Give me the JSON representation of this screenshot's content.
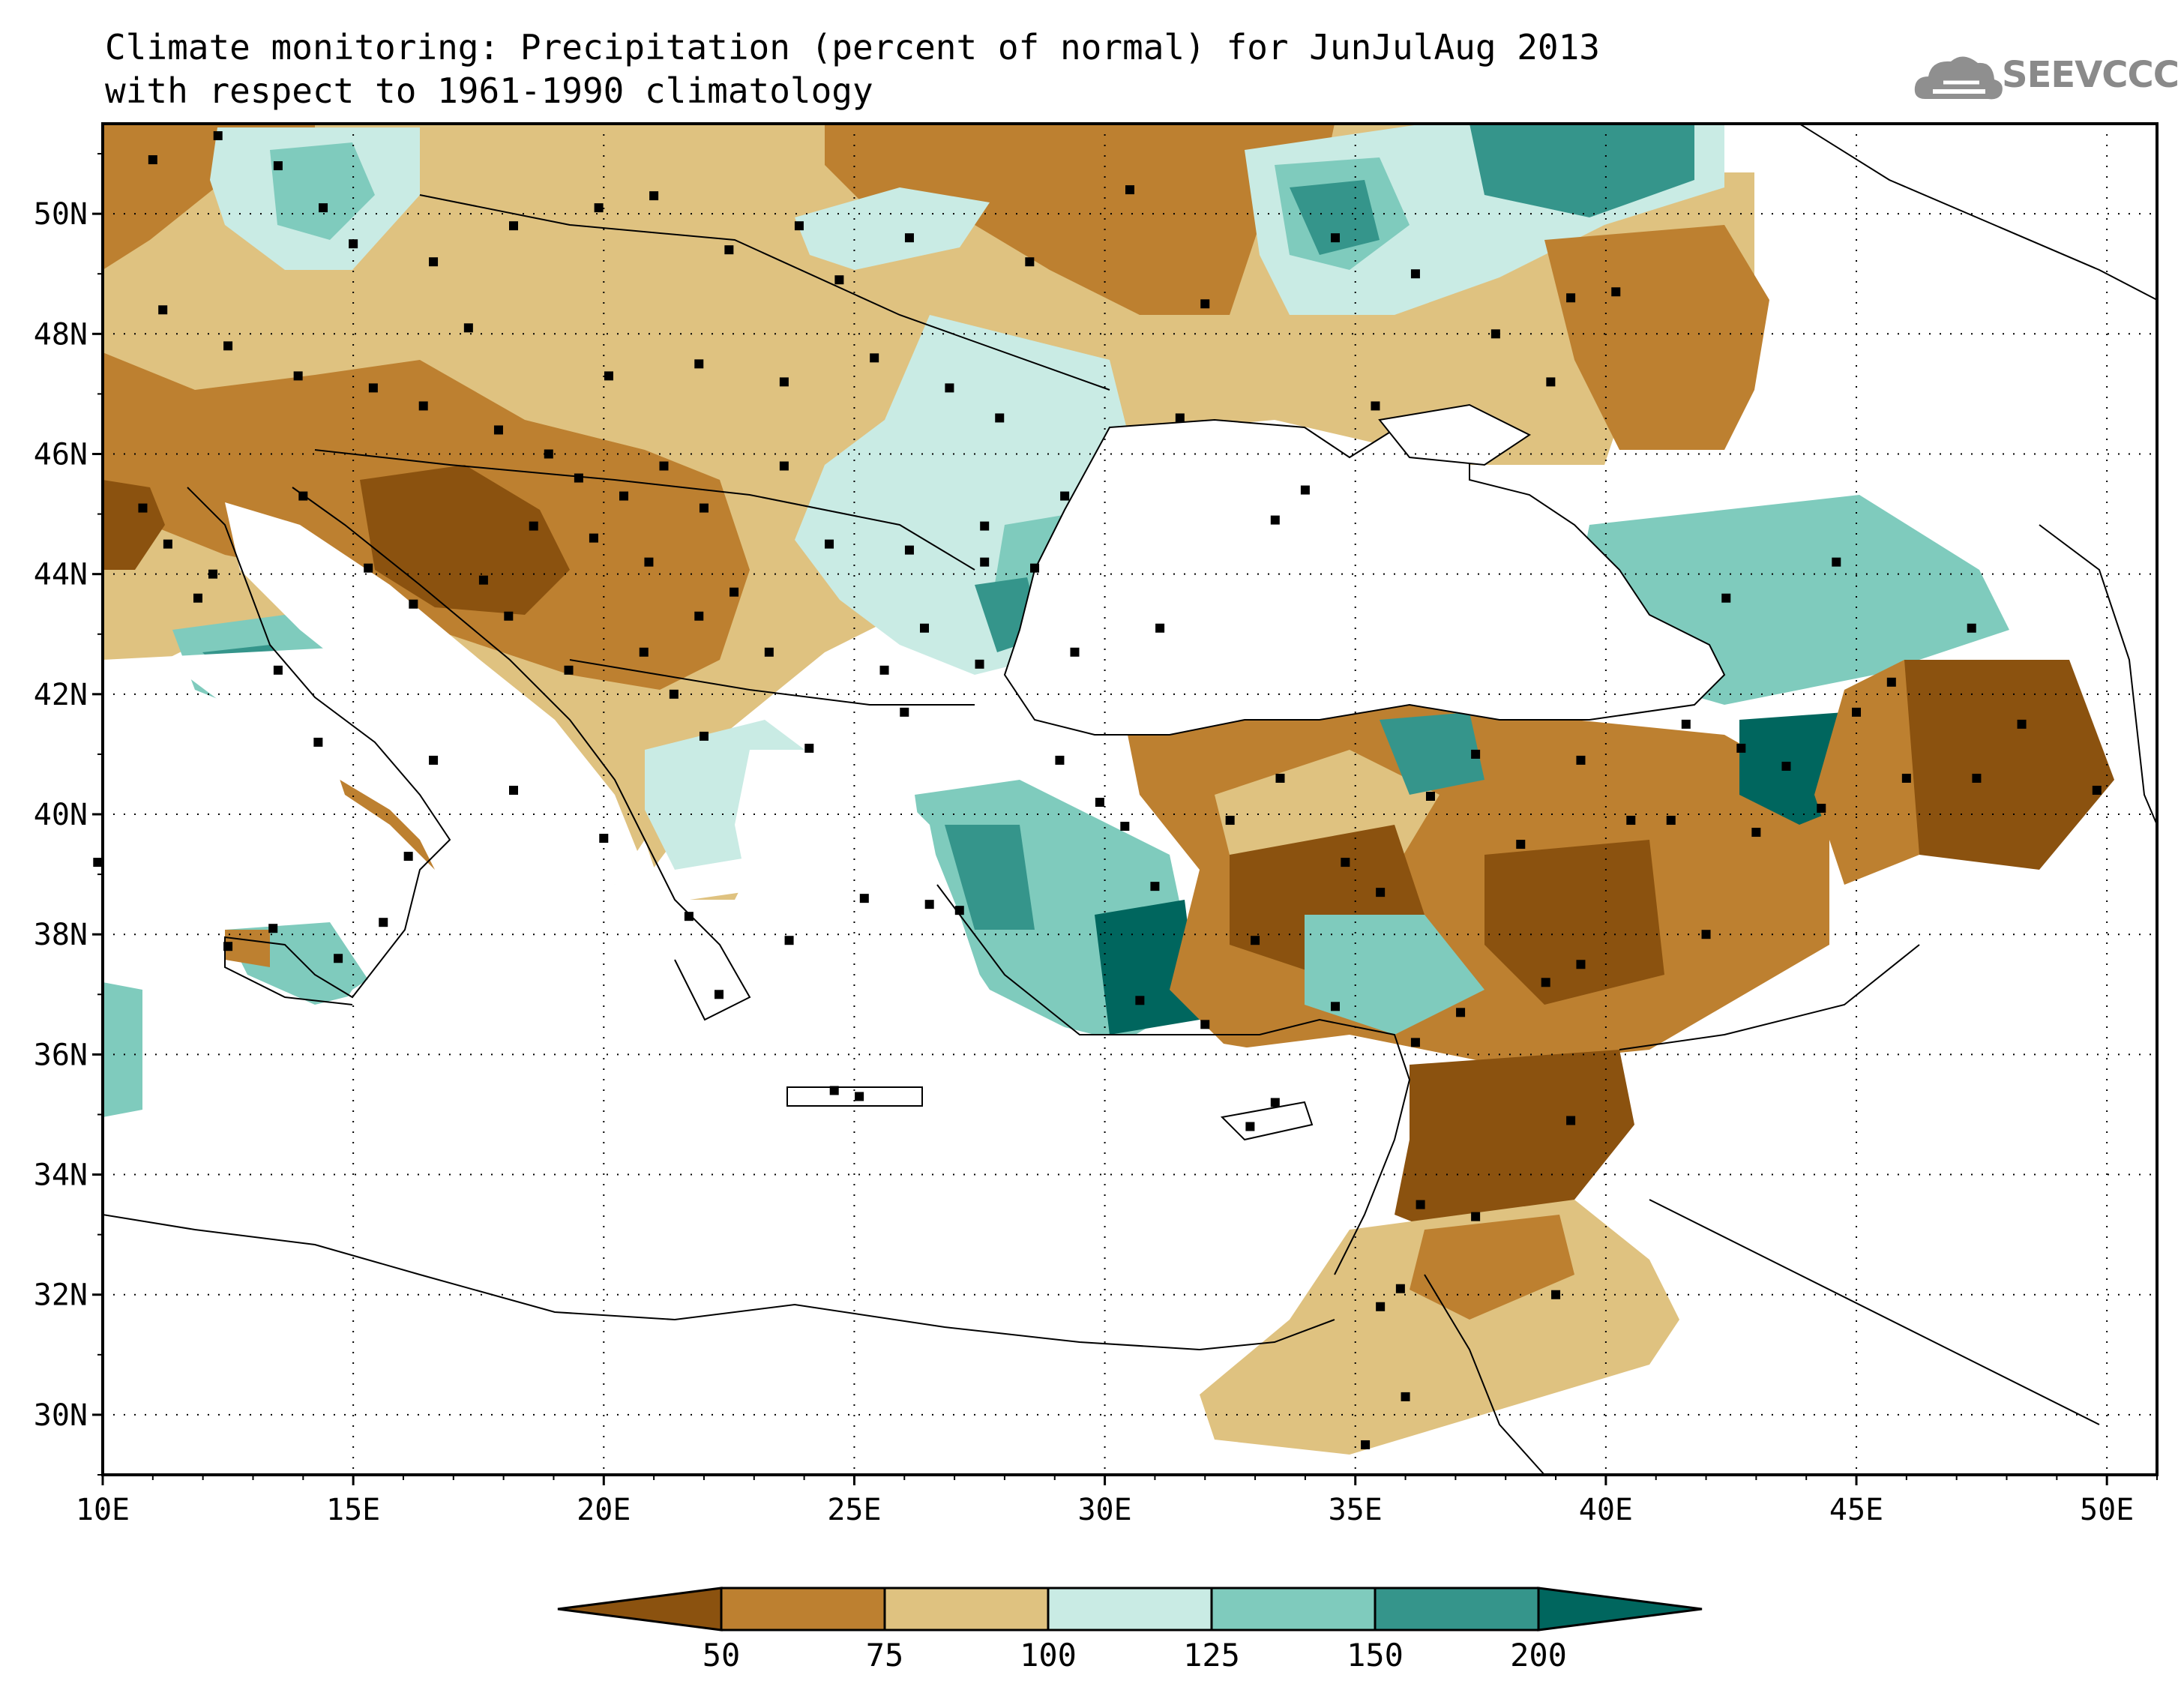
{
  "title": {
    "line1": "Climate monitoring: Precipitation (percent of normal) for JunJulAug 2013",
    "line2": "with respect to 1961-1990 climatology"
  },
  "logo": {
    "text": "SEEVCCC",
    "icon": "cloud-icon"
  },
  "map": {
    "lon_range": [
      10,
      51
    ],
    "lat_range": [
      29,
      51.5
    ],
    "x_ticks": [
      "10E",
      "15E",
      "20E",
      "25E",
      "30E",
      "35E",
      "40E",
      "45E",
      "50E"
    ],
    "y_ticks": [
      "30N",
      "32N",
      "34N",
      "36N",
      "38N",
      "40N",
      "42N",
      "44N",
      "46N",
      "48N",
      "50N"
    ],
    "grid": "dotted"
  },
  "colorbar": {
    "labels": [
      "50",
      "75",
      "100",
      "125",
      "150",
      "200"
    ],
    "colors": [
      "#8b520f",
      "#bd8030",
      "#dfc280",
      "#c9ebe4",
      "#7fcbbd",
      "#35958b",
      "#00665e"
    ]
  },
  "colors": {
    "very_dry": "#8b520f",
    "dry": "#bd8030",
    "slightly_dry": "#dfc280",
    "slightly_wet": "#c9ebe4",
    "wet": "#7fcbbd",
    "very_wet": "#35958b",
    "extreme_wet": "#00665e"
  }
}
